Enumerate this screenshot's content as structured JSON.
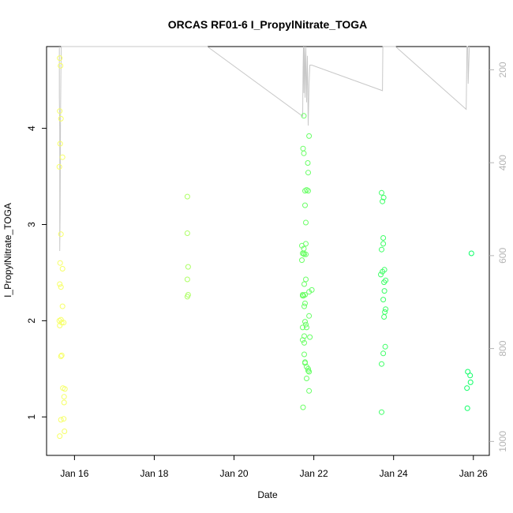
{
  "chart_data": {
    "type": "scatter",
    "title": "ORCAS RF01-6 I_PropylNitrate_TOGA",
    "xlabel": "Date",
    "ylabel": "I_PropylNitrate_TOGA",
    "x_unit": "days (day-of-January)",
    "xlim": [
      15.3,
      26.4
    ],
    "ylim": [
      0.6,
      4.85
    ],
    "x_ticks": [
      {
        "value": 16,
        "label": "Jan 16"
      },
      {
        "value": 18,
        "label": "Jan 18"
      },
      {
        "value": 20,
        "label": "Jan 20"
      },
      {
        "value": 22,
        "label": "Jan 22"
      },
      {
        "value": 24,
        "label": "Jan 24"
      },
      {
        "value": 26,
        "label": "Jan 26"
      }
    ],
    "y_ticks": [
      1,
      2,
      3,
      4
    ],
    "y2_label": "",
    "y2_ticks": [
      200,
      400,
      600,
      800,
      1000
    ],
    "y2_reversed": true,
    "y2_lim": [
      1030,
      150
    ],
    "grid": false,
    "legend": "none",
    "series": [
      {
        "role": "points",
        "marker": "open-circle",
        "color_scale": [
          "#ffff66",
          "#00ff66"
        ],
        "points": [
          [
            15.63,
            4.73
          ],
          [
            15.65,
            4.65
          ],
          [
            15.63,
            4.18
          ],
          [
            15.66,
            4.1
          ],
          [
            15.64,
            3.84
          ],
          [
            15.7,
            3.7
          ],
          [
            15.62,
            3.6
          ],
          [
            15.66,
            2.9
          ],
          [
            15.64,
            2.6
          ],
          [
            15.7,
            2.54
          ],
          [
            15.63,
            2.38
          ],
          [
            15.66,
            2.35
          ],
          [
            15.7,
            2.15
          ],
          [
            15.62,
            2.0
          ],
          [
            15.68,
            1.98
          ],
          [
            15.66,
            2.01
          ],
          [
            15.73,
            1.98
          ],
          [
            15.63,
            1.95
          ],
          [
            15.66,
            1.63
          ],
          [
            15.68,
            1.64
          ],
          [
            15.71,
            1.3
          ],
          [
            15.76,
            1.29
          ],
          [
            15.74,
            1.21
          ],
          [
            15.74,
            1.15
          ],
          [
            15.66,
            0.97
          ],
          [
            15.73,
            0.98
          ],
          [
            15.75,
            0.85
          ],
          [
            15.63,
            0.8
          ],
          [
            18.83,
            3.29
          ],
          [
            18.83,
            2.91
          ],
          [
            18.85,
            2.56
          ],
          [
            18.83,
            2.43
          ],
          [
            18.85,
            2.27
          ],
          [
            18.83,
            2.25
          ],
          [
            21.75,
            4.13
          ],
          [
            21.73,
            3.79
          ],
          [
            21.75,
            3.74
          ],
          [
            21.88,
            3.92
          ],
          [
            21.85,
            3.64
          ],
          [
            21.86,
            3.54
          ],
          [
            21.82,
            3.36
          ],
          [
            21.86,
            3.35
          ],
          [
            21.78,
            3.35
          ],
          [
            21.78,
            3.2
          ],
          [
            21.8,
            3.02
          ],
          [
            21.7,
            2.78
          ],
          [
            21.75,
            2.75
          ],
          [
            21.8,
            2.8
          ],
          [
            21.75,
            2.7
          ],
          [
            21.76,
            2.69
          ],
          [
            21.72,
            2.7
          ],
          [
            21.8,
            2.69
          ],
          [
            21.7,
            2.63
          ],
          [
            21.8,
            2.43
          ],
          [
            21.76,
            2.38
          ],
          [
            21.95,
            2.32
          ],
          [
            21.88,
            2.3
          ],
          [
            21.72,
            2.27
          ],
          [
            21.74,
            2.26
          ],
          [
            21.78,
            2.27
          ],
          [
            21.72,
            2.26
          ],
          [
            21.78,
            2.18
          ],
          [
            21.76,
            2.15
          ],
          [
            21.88,
            2.05
          ],
          [
            21.78,
            1.99
          ],
          [
            21.8,
            1.96
          ],
          [
            21.72,
            1.93
          ],
          [
            21.82,
            1.93
          ],
          [
            21.76,
            1.84
          ],
          [
            21.9,
            1.83
          ],
          [
            21.72,
            1.8
          ],
          [
            21.76,
            1.77
          ],
          [
            21.76,
            1.65
          ],
          [
            21.78,
            1.57
          ],
          [
            21.78,
            1.56
          ],
          [
            21.82,
            1.52
          ],
          [
            21.86,
            1.5
          ],
          [
            21.86,
            1.48
          ],
          [
            21.88,
            1.47
          ],
          [
            21.82,
            1.4
          ],
          [
            21.88,
            1.27
          ],
          [
            21.73,
            1.1
          ],
          [
            23.7,
            3.33
          ],
          [
            23.75,
            3.28
          ],
          [
            23.72,
            3.24
          ],
          [
            23.74,
            2.86
          ],
          [
            23.74,
            2.8
          ],
          [
            23.7,
            2.74
          ],
          [
            23.77,
            2.53
          ],
          [
            23.72,
            2.51
          ],
          [
            23.68,
            2.48
          ],
          [
            23.8,
            2.42
          ],
          [
            23.76,
            2.4
          ],
          [
            23.77,
            2.31
          ],
          [
            23.74,
            2.22
          ],
          [
            23.8,
            2.12
          ],
          [
            23.78,
            2.09
          ],
          [
            23.76,
            2.04
          ],
          [
            23.79,
            1.73
          ],
          [
            23.74,
            1.66
          ],
          [
            23.7,
            1.55
          ],
          [
            23.7,
            1.05
          ],
          [
            25.95,
            2.7
          ],
          [
            25.86,
            1.47
          ],
          [
            25.92,
            1.43
          ],
          [
            25.93,
            1.36
          ],
          [
            25.84,
            1.3
          ],
          [
            25.85,
            1.09
          ]
        ]
      },
      {
        "role": "altitude-track",
        "axis": "right",
        "color": "#c8c8c8",
        "points": [
          [
            15.62,
            150
          ],
          [
            15.62,
            260
          ],
          [
            15.63,
            330
          ],
          [
            15.63,
            590
          ],
          [
            15.64,
            500
          ],
          [
            15.65,
            300
          ],
          [
            15.66,
            200
          ],
          [
            15.67,
            150
          ],
          [
            15.7,
            150
          ],
          [
            15.72,
            150
          ],
          [
            19.33,
            150
          ],
          [
            21.72,
            300
          ],
          [
            21.73,
            200
          ],
          [
            21.74,
            150
          ],
          [
            21.75,
            250
          ],
          [
            21.76,
            150
          ],
          [
            21.77,
            170
          ],
          [
            21.78,
            260
          ],
          [
            21.8,
            150
          ],
          [
            21.82,
            270
          ],
          [
            21.84,
            170
          ],
          [
            21.86,
            320
          ],
          [
            21.88,
            230
          ],
          [
            21.9,
            190
          ],
          [
            21.95,
            190
          ],
          [
            23.72,
            245
          ],
          [
            23.73,
            150
          ],
          [
            24.05,
            150
          ],
          [
            25.82,
            285
          ],
          [
            25.84,
            150
          ],
          [
            25.86,
            150
          ],
          [
            25.87,
            230
          ],
          [
            25.9,
            150
          ]
        ]
      }
    ]
  }
}
